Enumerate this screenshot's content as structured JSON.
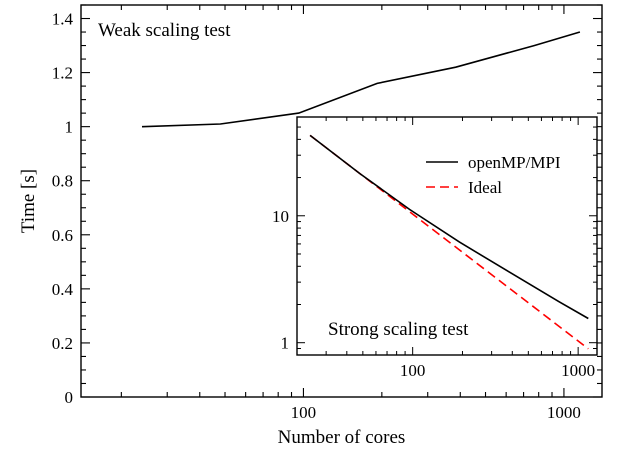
{
  "chart_data": [
    {
      "type": "line",
      "title": "Weak scaling test",
      "xlabel": "Number of cores",
      "ylabel": "Time [s]",
      "xscale": "log",
      "xlim": [
        14,
        1400
      ],
      "ylim": [
        0,
        1.45
      ],
      "x_ticks": [
        100,
        1000
      ],
      "x_tick_labels": [
        "100",
        "1000"
      ],
      "y_ticks": [
        0,
        0.2,
        0.4,
        0.6,
        0.8,
        1,
        1.2,
        1.4
      ],
      "y_tick_labels": [
        "0",
        "0.2",
        "0.4",
        "0.6",
        "0.8",
        "1",
        "1.2",
        "1.4"
      ],
      "grid": false,
      "series": [
        {
          "name": "",
          "color": "#000000",
          "dash": "solid",
          "x": [
            24,
            48,
            96,
            192,
            384,
            768,
            1152
          ],
          "y": [
            1.0,
            1.01,
            1.05,
            1.16,
            1.22,
            1.3,
            1.35
          ]
        }
      ]
    },
    {
      "type": "line",
      "title": "Strong scaling test",
      "xlabel": "",
      "ylabel": "",
      "xscale": "log",
      "yscale": "log",
      "xlim": [
        20,
        1300
      ],
      "ylim": [
        0.8,
        60
      ],
      "x_ticks": [
        100,
        1000
      ],
      "x_tick_labels": [
        "100",
        "1000"
      ],
      "y_ticks": [
        1,
        10
      ],
      "y_tick_labels": [
        "1",
        "10"
      ],
      "grid": false,
      "legend": "top-right",
      "series": [
        {
          "name": "openMP/MPI",
          "color": "#000000",
          "dash": "solid",
          "x": [
            24,
            48,
            96,
            192,
            384,
            768,
            1152
          ],
          "y": [
            43,
            21.5,
            11.2,
            6.2,
            3.6,
            2.1,
            1.55
          ]
        },
        {
          "name": "Ideal",
          "color": "#ff0000",
          "dash": "dashed",
          "x": [
            24,
            1152
          ],
          "y": [
            43,
            0.896
          ]
        }
      ]
    }
  ]
}
